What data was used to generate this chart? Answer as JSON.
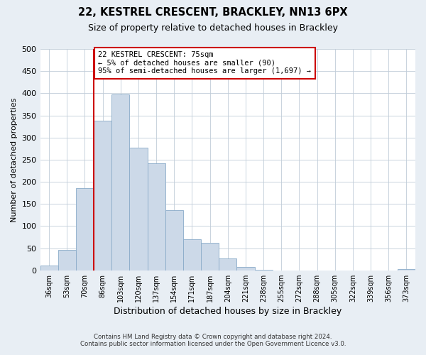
{
  "title": "22, KESTREL CRESCENT, BRACKLEY, NN13 6PX",
  "subtitle": "Size of property relative to detached houses in Brackley",
  "xlabel": "Distribution of detached houses by size in Brackley",
  "ylabel": "Number of detached properties",
  "bin_labels": [
    "36sqm",
    "53sqm",
    "70sqm",
    "86sqm",
    "103sqm",
    "120sqm",
    "137sqm",
    "154sqm",
    "171sqm",
    "187sqm",
    "204sqm",
    "221sqm",
    "238sqm",
    "255sqm",
    "272sqm",
    "288sqm",
    "305sqm",
    "322sqm",
    "339sqm",
    "356sqm",
    "373sqm"
  ],
  "bar_heights": [
    10,
    46,
    185,
    338,
    398,
    277,
    241,
    136,
    70,
    62,
    26,
    7,
    1,
    0,
    0,
    0,
    0,
    0,
    0,
    0,
    3
  ],
  "bar_color": "#ccd9e8",
  "bar_edge_color": "#8aabc8",
  "vline_x_index": 2,
  "vline_color": "#cc0000",
  "annotation_text": "22 KESTREL CRESCENT: 75sqm\n← 5% of detached houses are smaller (90)\n95% of semi-detached houses are larger (1,697) →",
  "annotation_box_color": "#ffffff",
  "annotation_box_edge": "#cc0000",
  "ylim": [
    0,
    500
  ],
  "yticks": [
    0,
    50,
    100,
    150,
    200,
    250,
    300,
    350,
    400,
    450,
    500
  ],
  "footer_line1": "Contains HM Land Registry data © Crown copyright and database right 2024.",
  "footer_line2": "Contains public sector information licensed under the Open Government Licence v3.0.",
  "bg_color": "#e8eef4",
  "plot_bg_color": "#ffffff",
  "grid_color": "#c0ccd8"
}
